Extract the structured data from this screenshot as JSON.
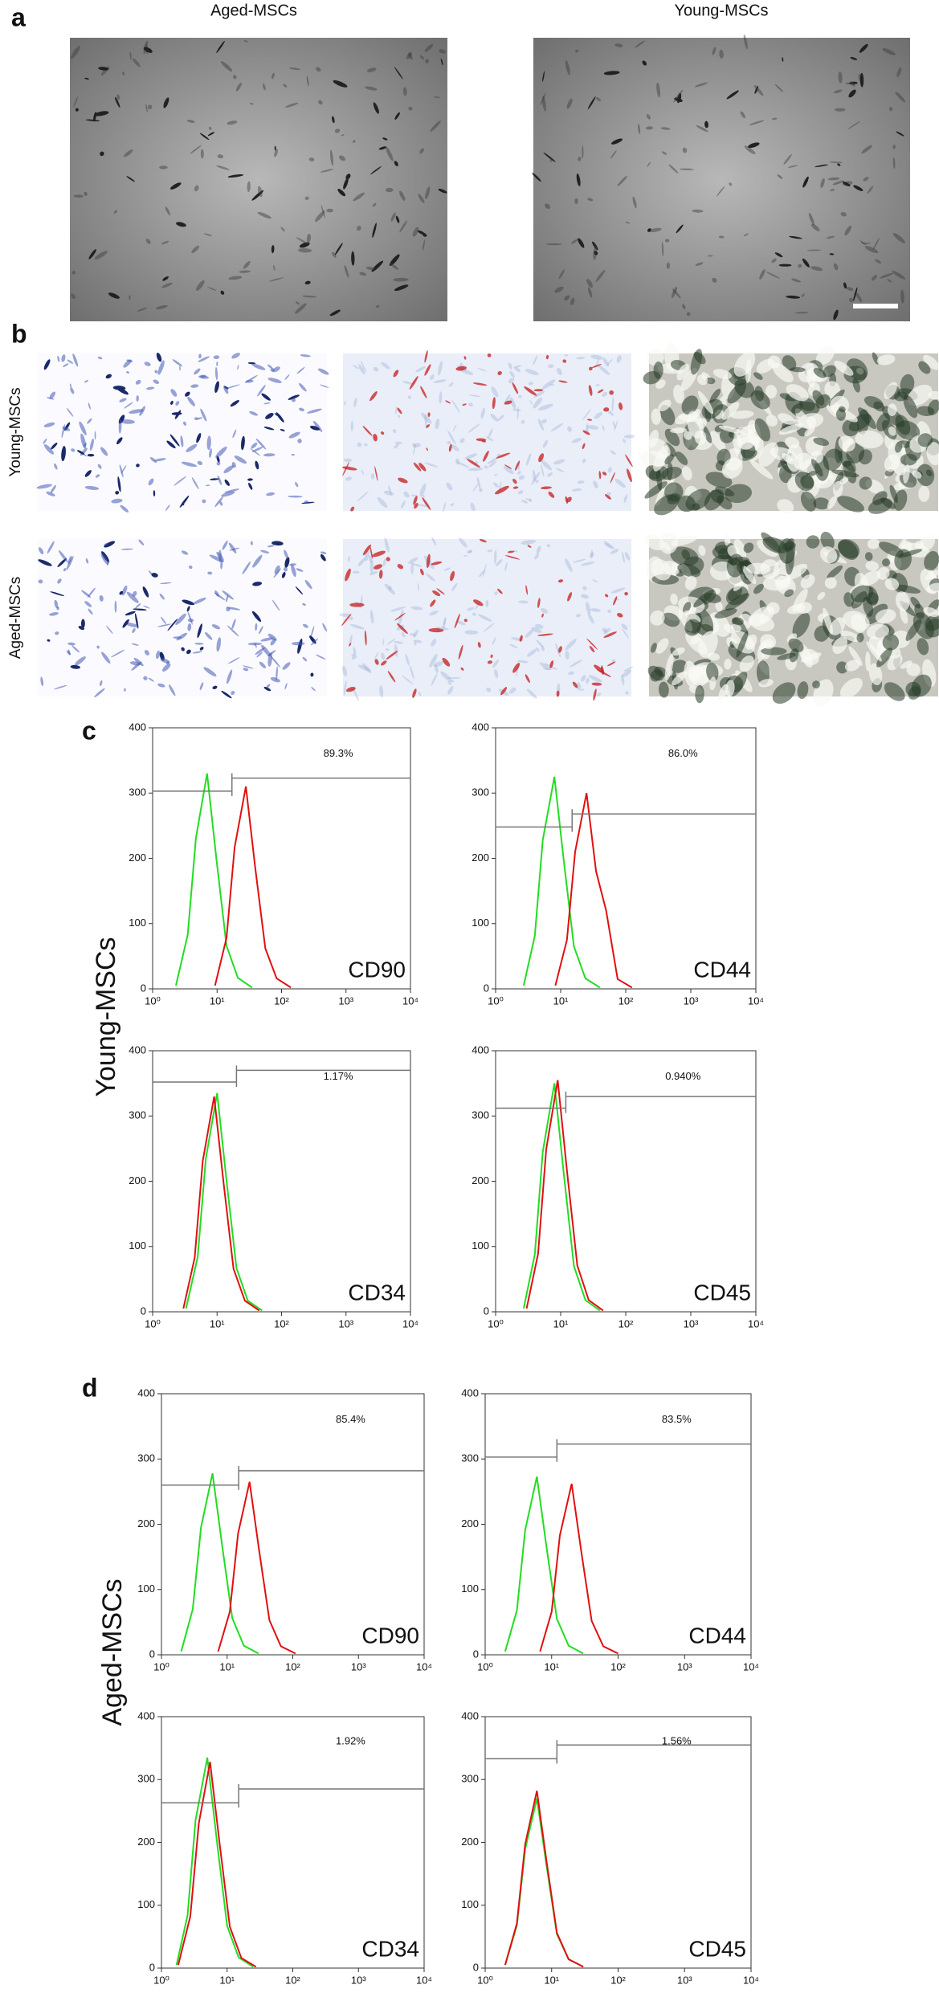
{
  "panel_a": {
    "label": "a",
    "titles": [
      "Aged-MSCs",
      "Young-MSCs"
    ]
  },
  "panel_b": {
    "label": "b",
    "rows": [
      "Young-MSCs",
      "Aged-MSCs"
    ]
  },
  "panel_c": {
    "label": "c",
    "ylabel": "Young-MSCs",
    "xlim": [
      1,
      10000
    ],
    "ylim": [
      0,
      400
    ],
    "xticks": [
      {
        "value": 1,
        "label": "10⁰"
      },
      {
        "value": 10,
        "label": "10¹"
      },
      {
        "value": 100,
        "label": "10²"
      },
      {
        "value": 1000,
        "label": "10³"
      },
      {
        "value": 10000,
        "label": "10⁴"
      }
    ],
    "yticks": [
      0,
      100,
      200,
      300,
      400
    ],
    "plots": [
      {
        "marker": "CD90",
        "percent": "89.3%",
        "gate": {
          "x": 17,
          "levels": [
            303,
            323
          ]
        },
        "series": [
          {
            "color": "#22dd22",
            "x": [
              2.3,
              3.5,
              4.7,
              7,
              9.8,
              14,
              21,
              35
            ],
            "values": [
              5,
              83,
              231,
              330,
              198,
              66,
              17,
              2
            ]
          },
          {
            "color": "#e01010",
            "x": [
              9.3,
              14,
              18.7,
              28,
              39,
              56,
              84,
              140
            ],
            "values": [
              5,
              78,
              217,
              310,
              186,
              62,
              16,
              2
            ]
          }
        ]
      },
      {
        "marker": "CD44",
        "percent": "86.0%",
        "gate": {
          "x": 15,
          "levels": [
            248,
            268
          ]
        },
        "series": [
          {
            "color": "#22dd22",
            "x": [
              2.7,
              4,
              5.3,
              8,
              11.2,
              16,
              24,
              40
            ],
            "values": [
              5,
              81,
              228,
              325,
              195,
              65,
              16,
              2
            ]
          },
          {
            "color": "#e01010",
            "x": [
              8.3,
              12.5,
              16.7,
              25,
              35,
              50,
              75,
              125
            ],
            "values": [
              5,
              75,
              210,
              300,
              180,
              120,
              15,
              2
            ]
          }
        ]
      },
      {
        "marker": "CD34",
        "percent": "1.17%",
        "gate": {
          "x": 20,
          "levels": [
            352,
            370
          ]
        },
        "series": [
          {
            "color": "#22dd22",
            "x": [
              3.3,
              5,
              6.7,
              10,
              14,
              20,
              30,
              50
            ],
            "values": [
              5,
              84,
              235,
              335,
              201,
              67,
              17,
              2
            ]
          },
          {
            "color": "#e01010",
            "x": [
              3,
              4.5,
              6,
              9,
              12.6,
              18,
              27,
              45
            ],
            "values": [
              5,
              83,
              231,
              330,
              198,
              66,
              17,
              2
            ]
          }
        ]
      },
      {
        "marker": "CD45",
        "percent": "0.940%",
        "gate": {
          "x": 12,
          "levels": [
            312,
            330
          ]
        },
        "series": [
          {
            "color": "#22dd22",
            "x": [
              2.7,
              4,
              5.3,
              8,
              11.2,
              16,
              24,
              40
            ],
            "values": [
              5,
              88,
              245,
              350,
              210,
              70,
              18,
              2
            ]
          },
          {
            "color": "#e01010",
            "x": [
              3,
              4.5,
              6,
              9,
              12.6,
              18,
              27,
              45
            ],
            "values": [
              5,
              89,
              249,
              355,
              213,
              71,
              18,
              2
            ]
          }
        ]
      }
    ]
  },
  "panel_d": {
    "label": "d",
    "ylabel": "Aged-MSCs",
    "xlim": [
      1,
      10000
    ],
    "ylim": [
      0,
      400
    ],
    "xticks": [
      {
        "value": 1,
        "label": "10⁰"
      },
      {
        "value": 10,
        "label": "10¹"
      },
      {
        "value": 100,
        "label": "10²"
      },
      {
        "value": 1000,
        "label": "10³"
      },
      {
        "value": 10000,
        "label": "10⁴"
      }
    ],
    "yticks": [
      0,
      100,
      200,
      300,
      400
    ],
    "plots": [
      {
        "marker": "CD90",
        "percent": "85.4%",
        "gate": {
          "x": 15,
          "levels": [
            260,
            282
          ]
        },
        "series": [
          {
            "color": "#22dd22",
            "x": [
              2,
              3,
              4,
              6,
              8.4,
              12,
              18,
              30
            ],
            "values": [
              5,
              70,
              195,
              278,
              167,
              56,
              14,
              2
            ]
          },
          {
            "color": "#e01010",
            "x": [
              7.3,
              11,
              14.7,
              22,
              30.8,
              44,
              66,
              110
            ],
            "values": [
              5,
              66,
              186,
              265,
              159,
              53,
              13,
              2
            ]
          }
        ]
      },
      {
        "marker": "CD44",
        "percent": "83.5%",
        "gate": {
          "x": 12,
          "levels": [
            303,
            323
          ]
        },
        "series": [
          {
            "color": "#22dd22",
            "x": [
              2,
              3,
              4,
              6,
              8.4,
              12,
              18,
              30
            ],
            "values": [
              5,
              68,
              191,
              273,
              164,
              55,
              14,
              2
            ]
          },
          {
            "color": "#e01010",
            "x": [
              6.7,
              10,
              13.3,
              20,
              28,
              40,
              60,
              100
            ],
            "values": [
              5,
              66,
              183,
              262,
              157,
              52,
              13,
              2
            ]
          }
        ]
      },
      {
        "marker": "CD34",
        "percent": "1.92%",
        "gate": {
          "x": 15,
          "levels": [
            263,
            285
          ]
        },
        "series": [
          {
            "color": "#22dd22",
            "x": [
              1.7,
              2.5,
              3.3,
              5,
              7,
              10,
              15,
              25
            ],
            "values": [
              5,
              84,
              235,
              335,
              201,
              67,
              17,
              2
            ]
          },
          {
            "color": "#e01010",
            "x": [
              1.8,
              2.75,
              3.7,
              5.5,
              7.7,
              11,
              16.5,
              27.5
            ],
            "values": [
              5,
              82,
              230,
              328,
              197,
              66,
              16,
              2
            ]
          }
        ]
      },
      {
        "marker": "CD45",
        "percent": "1.56%",
        "gate": {
          "x": 12,
          "levels": [
            333,
            355
          ]
        },
        "series": [
          {
            "color": "#22dd22",
            "x": [
              2,
              3,
              4,
              6,
              8.4,
              12,
              18,
              30
            ],
            "values": [
              5,
              68,
              189,
              270,
              162,
              54,
              14,
              2
            ]
          },
          {
            "color": "#e01010",
            "x": [
              2,
              3,
              4,
              6,
              8.4,
              12,
              18,
              30
            ],
            "values": [
              5,
              71,
              197,
              282,
              169,
              56,
              14,
              2
            ]
          }
        ]
      }
    ]
  }
}
